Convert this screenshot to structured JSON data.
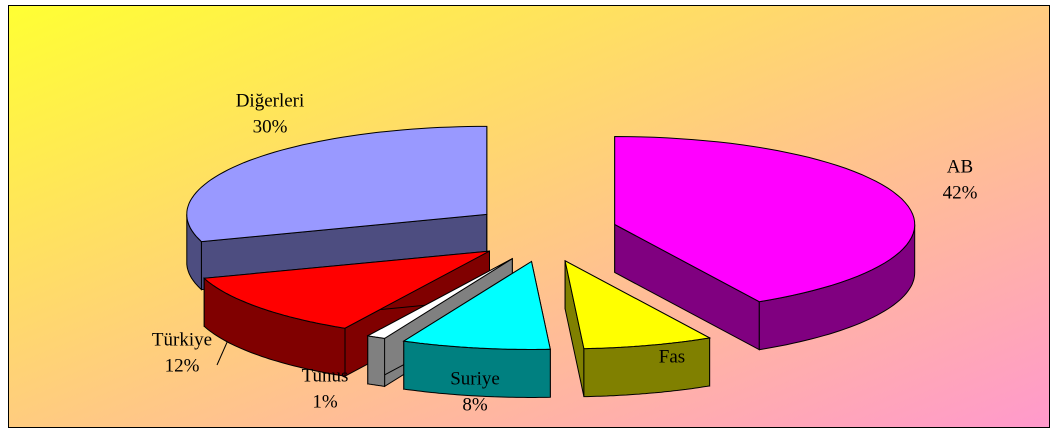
{
  "chart_data": {
    "type": "pie3d",
    "categories": [
      "AB",
      "Fas",
      "Suriye",
      "Tunus",
      "Türkiye",
      "Diğerleri"
    ],
    "values": [
      42,
      7,
      8,
      1,
      12,
      30
    ],
    "value_labels": [
      "42%",
      null,
      "8%",
      "1%",
      "12%",
      "30%"
    ],
    "colors": [
      "#ff00ff",
      "#ffff00",
      "#00ffff",
      "#ffffff",
      "#ff0000",
      "#9999ff"
    ]
  }
}
